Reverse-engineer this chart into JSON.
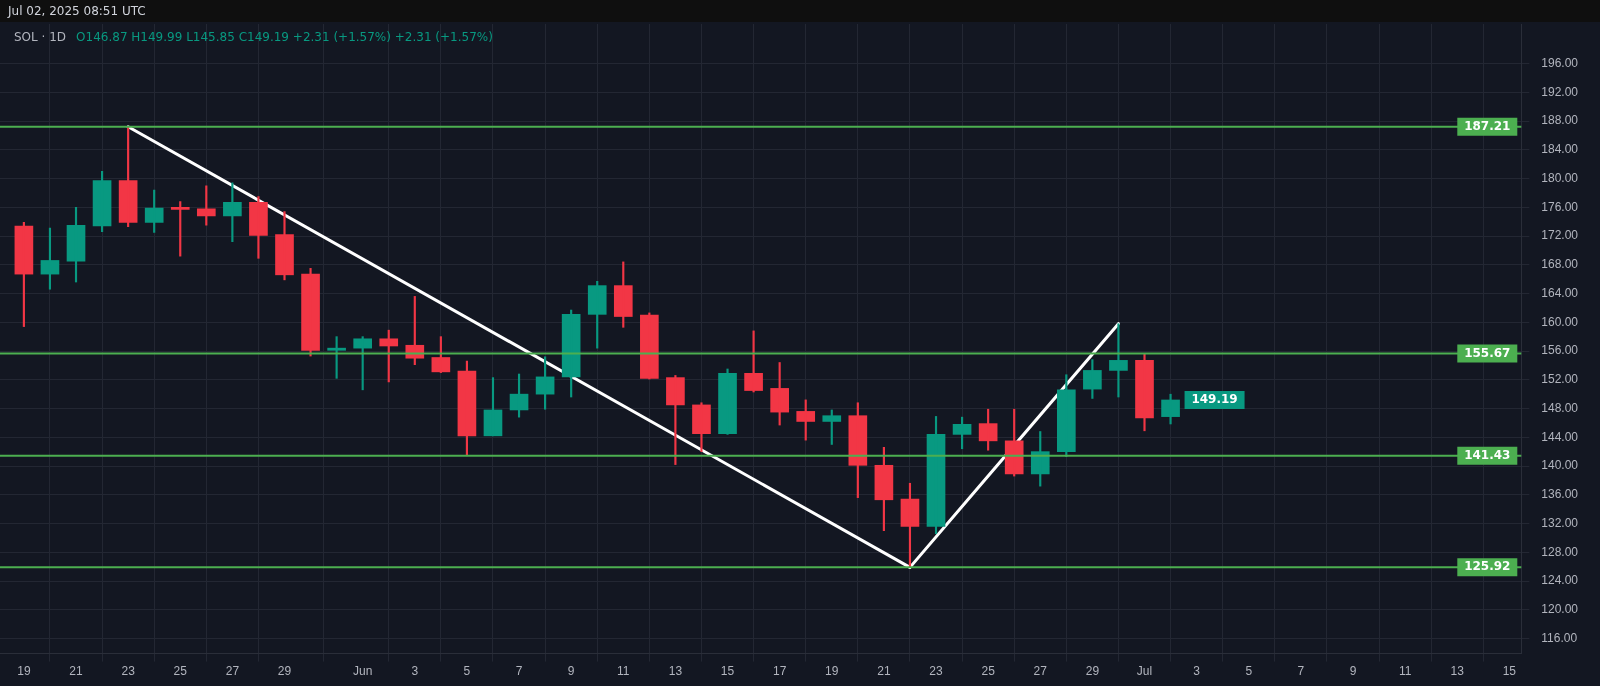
{
  "chart_data": {
    "type": "candlestick",
    "title": "SOL · 1D",
    "subtitle": "O146.87 H149.99 L145.85 C149.19 +2.31 (+1.57%) +2.31 (+1.57%)",
    "annotations": [
      "Jul 02, 2025 08:51 UTC",
      {
        "text": "149.19",
        "x": "2025-07-02",
        "y": 149.19
      }
    ],
    "x": [
      "2025-05-19",
      "2025-05-20",
      "2025-05-21",
      "2025-05-22",
      "2025-05-23",
      "2025-05-24",
      "2025-05-25",
      "2025-05-26",
      "2025-05-27",
      "2025-05-28",
      "2025-05-29",
      "2025-05-30",
      "2025-05-31",
      "2025-06-01",
      "2025-06-02",
      "2025-06-03",
      "2025-06-04",
      "2025-06-05",
      "2025-06-06",
      "2025-06-07",
      "2025-06-08",
      "2025-06-09",
      "2025-06-10",
      "2025-06-11",
      "2025-06-12",
      "2025-06-13",
      "2025-06-14",
      "2025-06-15",
      "2025-06-16",
      "2025-06-17",
      "2025-06-18",
      "2025-06-19",
      "2025-06-20",
      "2025-06-21",
      "2025-06-22",
      "2025-06-23",
      "2025-06-24",
      "2025-06-25",
      "2025-06-26",
      "2025-06-27",
      "2025-06-28",
      "2025-06-29",
      "2025-06-30",
      "2025-07-01",
      "2025-07-02"
    ],
    "ohlc": [
      [
        173.4,
        173.9,
        159.4,
        166.7
      ],
      [
        166.7,
        173.1,
        164.6,
        168.6
      ],
      [
        168.5,
        176.0,
        165.6,
        173.5
      ],
      [
        173.4,
        181.0,
        172.6,
        179.7
      ],
      [
        179.7,
        187.21,
        173.3,
        173.9
      ],
      [
        173.9,
        178.4,
        172.5,
        175.9
      ],
      [
        176.0,
        176.8,
        169.2,
        175.7
      ],
      [
        175.8,
        179.0,
        173.5,
        174.8
      ],
      [
        174.8,
        179.4,
        171.2,
        176.7
      ],
      [
        176.7,
        177.5,
        168.9,
        172.1
      ],
      [
        172.2,
        175.4,
        165.9,
        166.6
      ],
      [
        166.7,
        167.5,
        155.3,
        156.1
      ],
      [
        156.1,
        158.0,
        152.2,
        156.4
      ],
      [
        156.4,
        158.0,
        150.6,
        157.7
      ],
      [
        157.7,
        158.9,
        151.7,
        156.7
      ],
      [
        156.8,
        163.6,
        154.1,
        155.0
      ],
      [
        155.1,
        158.0,
        153.0,
        153.1
      ],
      [
        153.2,
        154.6,
        141.43,
        144.2
      ],
      [
        144.2,
        152.3,
        144.2,
        147.8
      ],
      [
        147.8,
        152.8,
        146.8,
        150.0
      ],
      [
        150.0,
        155.2,
        147.9,
        152.4
      ],
      [
        152.4,
        161.7,
        149.6,
        161.1
      ],
      [
        161.1,
        165.7,
        156.4,
        165.1
      ],
      [
        165.1,
        168.4,
        159.3,
        160.8
      ],
      [
        161.0,
        161.3,
        152.1,
        152.2
      ],
      [
        152.3,
        152.6,
        140.2,
        148.5
      ],
      [
        148.5,
        148.8,
        142.0,
        144.5
      ],
      [
        144.5,
        153.5,
        144.4,
        152.9
      ],
      [
        152.9,
        158.8,
        150.3,
        150.5
      ],
      [
        150.8,
        154.4,
        145.7,
        147.5
      ],
      [
        147.6,
        149.2,
        143.6,
        146.2
      ],
      [
        146.2,
        147.8,
        143.0,
        147.0
      ],
      [
        147.0,
        148.8,
        135.6,
        140.1
      ],
      [
        140.1,
        142.6,
        131.0,
        135.3
      ],
      [
        135.4,
        137.6,
        125.92,
        131.6
      ],
      [
        131.6,
        146.9,
        130.6,
        144.4
      ],
      [
        144.4,
        146.8,
        142.4,
        145.8
      ],
      [
        145.9,
        147.9,
        142.2,
        143.5
      ],
      [
        143.5,
        147.9,
        138.6,
        138.9
      ],
      [
        138.9,
        144.8,
        137.2,
        142.0
      ],
      [
        142.0,
        152.7,
        141.3,
        150.6
      ],
      [
        150.7,
        154.8,
        149.4,
        153.3
      ],
      [
        153.3,
        159.8,
        149.6,
        154.7
      ],
      [
        154.7,
        155.6,
        144.9,
        146.7
      ],
      [
        146.87,
        149.99,
        145.85,
        149.19
      ]
    ],
    "colors": [
      "#f23645",
      "#089981",
      "#089981",
      "#089981",
      "#f23645",
      "#089981",
      "#f23645",
      "#f23645",
      "#089981",
      "#f23645",
      "#f23645",
      "#f23645",
      "#089981",
      "#089981",
      "#f23645",
      "#f23645",
      "#f23645",
      "#f23645",
      "#089981",
      "#089981",
      "#089981",
      "#089981",
      "#089981",
      "#f23645",
      "#f23645",
      "#f23645",
      "#f23645",
      "#089981",
      "#f23645",
      "#f23645",
      "#f23645",
      "#089981",
      "#f23645",
      "#f23645",
      "#f23645",
      "#089981",
      "#089981",
      "#f23645",
      "#f23645",
      "#089981",
      "#089981",
      "#089981",
      "#089981",
      "#f23645",
      "#089981"
    ],
    "series": [
      {
        "type": "line",
        "color": "#ffffff",
        "x": [
          "2025-05-23",
          "2025-06-22"
        ],
        "values": [
          187.2,
          125.9
        ]
      },
      {
        "type": "line",
        "color": "#ffffff",
        "x": [
          "2025-06-22",
          "2025-06-30"
        ],
        "values": [
          125.9,
          159.8
        ]
      }
    ],
    "ref_lines": [
      {
        "axis": "y",
        "value": 187.21,
        "label": "187.21",
        "color": "#4caf50"
      },
      {
        "axis": "y",
        "value": 155.67,
        "label": "155.67",
        "color": "#4caf50"
      },
      {
        "axis": "y",
        "value": 141.43,
        "label": "141.43",
        "color": "#4caf50"
      },
      {
        "axis": "y",
        "value": 125.92,
        "label": "125.92",
        "color": "#4caf50"
      }
    ],
    "xlim": [
      "2025-05-18T02:00",
      "2025-07-15T11:00"
    ],
    "xticks": [
      {
        "value": "2025-05-19",
        "label": "19"
      },
      {
        "value": "2025-05-21",
        "label": "21"
      },
      {
        "value": "2025-05-23",
        "label": "23"
      },
      {
        "value": "2025-05-25",
        "label": "25"
      },
      {
        "value": "2025-05-27",
        "label": "27"
      },
      {
        "value": "2025-05-29",
        "label": "29"
      },
      {
        "value": "2025-06-01",
        "label": "Jun"
      },
      {
        "value": "2025-06-03",
        "label": "3"
      },
      {
        "value": "2025-06-05",
        "label": "5"
      },
      {
        "value": "2025-06-07",
        "label": "7"
      },
      {
        "value": "2025-06-09",
        "label": "9"
      },
      {
        "value": "2025-06-11",
        "label": "11"
      },
      {
        "value": "2025-06-13",
        "label": "13"
      },
      {
        "value": "2025-06-15",
        "label": "15"
      },
      {
        "value": "2025-06-17",
        "label": "17"
      },
      {
        "value": "2025-06-19",
        "label": "19"
      },
      {
        "value": "2025-06-21",
        "label": "21"
      },
      {
        "value": "2025-06-23",
        "label": "23"
      },
      {
        "value": "2025-06-25",
        "label": "25"
      },
      {
        "value": "2025-06-27",
        "label": "27"
      },
      {
        "value": "2025-06-29",
        "label": "29"
      },
      {
        "value": "2025-07-01",
        "label": "Jul"
      },
      {
        "value": "2025-07-03",
        "label": "3"
      },
      {
        "value": "2025-07-05",
        "label": "5"
      },
      {
        "value": "2025-07-07",
        "label": "7"
      },
      {
        "value": "2025-07-09",
        "label": "9"
      },
      {
        "value": "2025-07-11",
        "label": "11"
      },
      {
        "value": "2025-07-13",
        "label": "13"
      },
      {
        "value": "2025-07-15",
        "label": "15"
      }
    ],
    "ylim": [
      113.9,
      201.5
    ],
    "yticks": [
      {
        "value": 116,
        "label": "116.00"
      },
      {
        "value": 120,
        "label": "120.00"
      },
      {
        "value": 124,
        "label": "124.00"
      },
      {
        "value": 128,
        "label": "128.00"
      },
      {
        "value": 132,
        "label": "132.00"
      },
      {
        "value": 136,
        "label": "136.00"
      },
      {
        "value": 140,
        "label": "140.00"
      },
      {
        "value": 144,
        "label": "144.00"
      },
      {
        "value": 148,
        "label": "148.00"
      },
      {
        "value": 152,
        "label": "152.00"
      },
      {
        "value": 156,
        "label": "156.00"
      },
      {
        "value": 160,
        "label": "160.00"
      },
      {
        "value": 164,
        "label": "164.00"
      },
      {
        "value": 168,
        "label": "168.00"
      },
      {
        "value": 172,
        "label": "172.00"
      },
      {
        "value": 176,
        "label": "176.00"
      },
      {
        "value": 180,
        "label": "180.00"
      },
      {
        "value": 184,
        "label": "184.00"
      },
      {
        "value": 188,
        "label": "188.00"
      },
      {
        "value": 192,
        "label": "192.00"
      },
      {
        "value": 196,
        "label": "196.00"
      }
    ],
    "grid": true,
    "legend": false
  }
}
